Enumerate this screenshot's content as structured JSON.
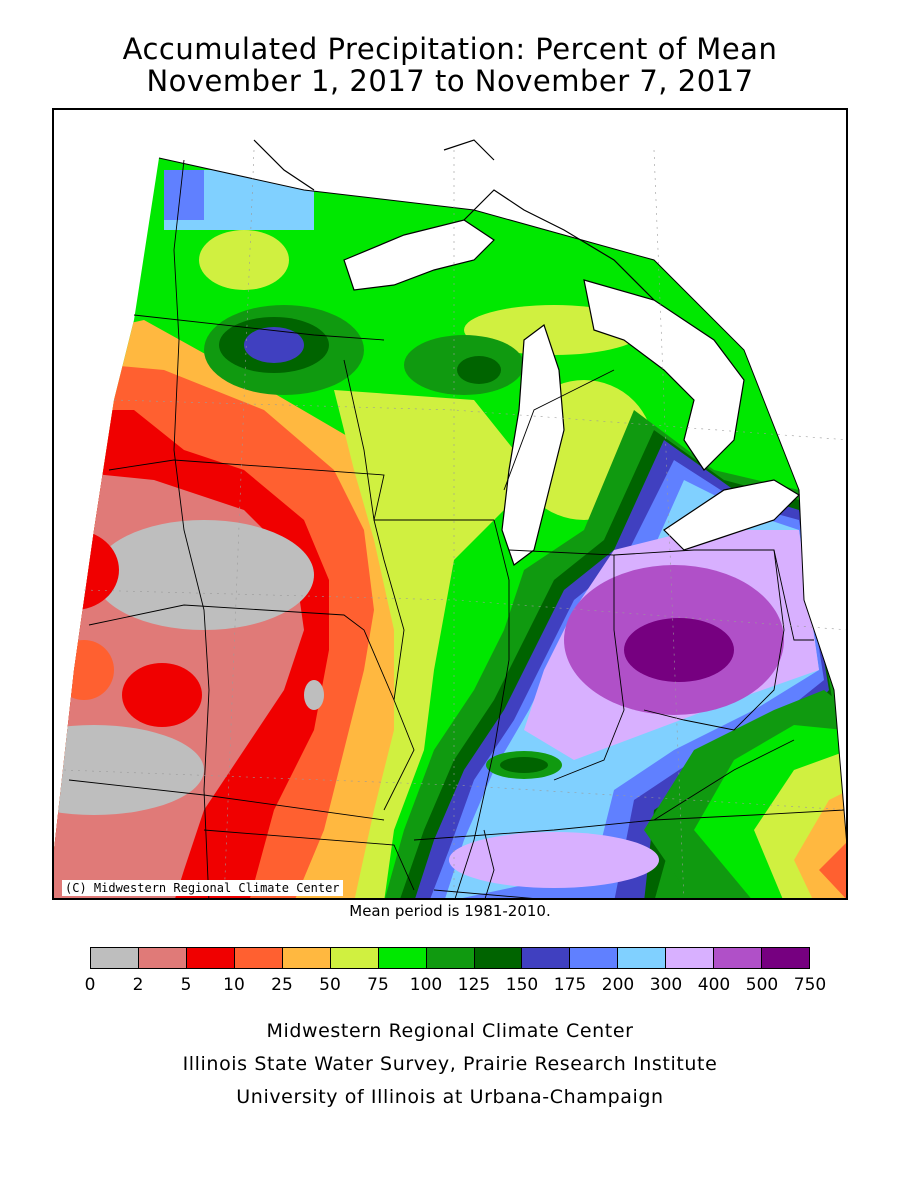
{
  "title": {
    "line1": "Accumulated Precipitation: Percent of Mean",
    "line2": "November 1, 2017 to November 7, 2017"
  },
  "map": {
    "copyright": "(C) Midwestern Regional Climate Center",
    "note": "Mean period is 1981-2010."
  },
  "legend": {
    "ticks": [
      "0",
      "2",
      "5",
      "10",
      "25",
      "50",
      "75",
      "100",
      "125",
      "150",
      "175",
      "200",
      "300",
      "400",
      "500",
      "750"
    ],
    "colors": [
      "#bebebe",
      "#e07a78",
      "#f00000",
      "#ff6030",
      "#ffb840",
      "#d0f040",
      "#00e800",
      "#109a10",
      "#006400",
      "#4040c0",
      "#6080ff",
      "#80d0ff",
      "#d8b0ff",
      "#b050c8",
      "#760080"
    ]
  },
  "credits": {
    "line1": "Midwestern Regional Climate Center",
    "line2": "Illinois State Water Survey, Prairie Research Institute",
    "line3": "University of Illinois at Urbana-Champaign"
  }
}
